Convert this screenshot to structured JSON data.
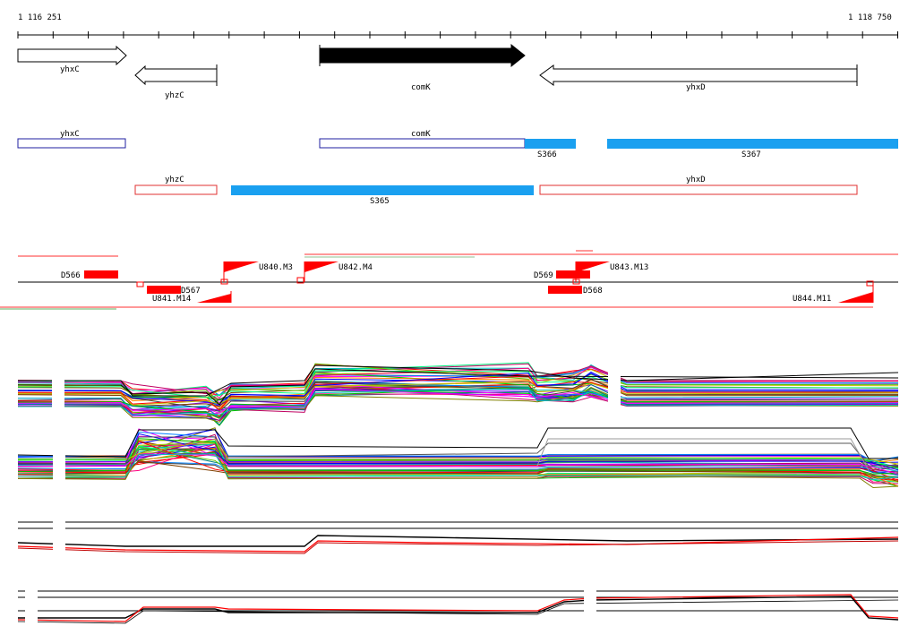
{
  "coords": {
    "start": "1 116 251",
    "end": "1 118 750"
  },
  "genes": [
    {
      "id": "yhxC",
      "label": "yhxC",
      "strand": "+",
      "style": "outline"
    },
    {
      "id": "yhzC",
      "label": "yhzC",
      "strand": "-",
      "style": "outline"
    },
    {
      "id": "comK",
      "label": "comK",
      "strand": "+",
      "style": "filled"
    },
    {
      "id": "yhxD",
      "label": "yhxD",
      "strand": "-",
      "style": "outline"
    }
  ],
  "segments_forward": [
    {
      "label": "yhxC",
      "kind": "gene",
      "color": "#1f1fa0"
    },
    {
      "label": "comK",
      "kind": "gene",
      "color": "#1f1fa0"
    },
    {
      "label": "S366",
      "kind": "segment",
      "color": "#1aa0f0"
    },
    {
      "label": "S367",
      "kind": "segment",
      "color": "#1aa0f0"
    }
  ],
  "segments_reverse": [
    {
      "label": "yhzC",
      "kind": "gene",
      "color": "#e03030"
    },
    {
      "label": "S365",
      "kind": "segment",
      "color": "#1aa0f0"
    },
    {
      "label": "yhxD",
      "kind": "gene",
      "color": "#e03030"
    }
  ],
  "features": [
    {
      "label": "D566",
      "type": "downshift"
    },
    {
      "label": "D567",
      "type": "downshift"
    },
    {
      "label": "U841.M14",
      "type": "upshift"
    },
    {
      "label": "U840.M3",
      "type": "upshift"
    },
    {
      "label": "U842.M4",
      "type": "upshift"
    },
    {
      "label": "D569",
      "type": "downshift"
    },
    {
      "label": "U843.M13",
      "type": "upshift"
    },
    {
      "label": "D568",
      "type": "downshift"
    },
    {
      "label": "U844.M11",
      "type": "upshift"
    }
  ],
  "colors": {
    "feature": "#ff0000",
    "segment": "#1aa0f0",
    "gene_fwd": "#1f1fa0",
    "gene_rev": "#e03030"
  },
  "profile_panels": [
    "panel-1",
    "panel-2",
    "panel-3",
    "panel-4"
  ]
}
